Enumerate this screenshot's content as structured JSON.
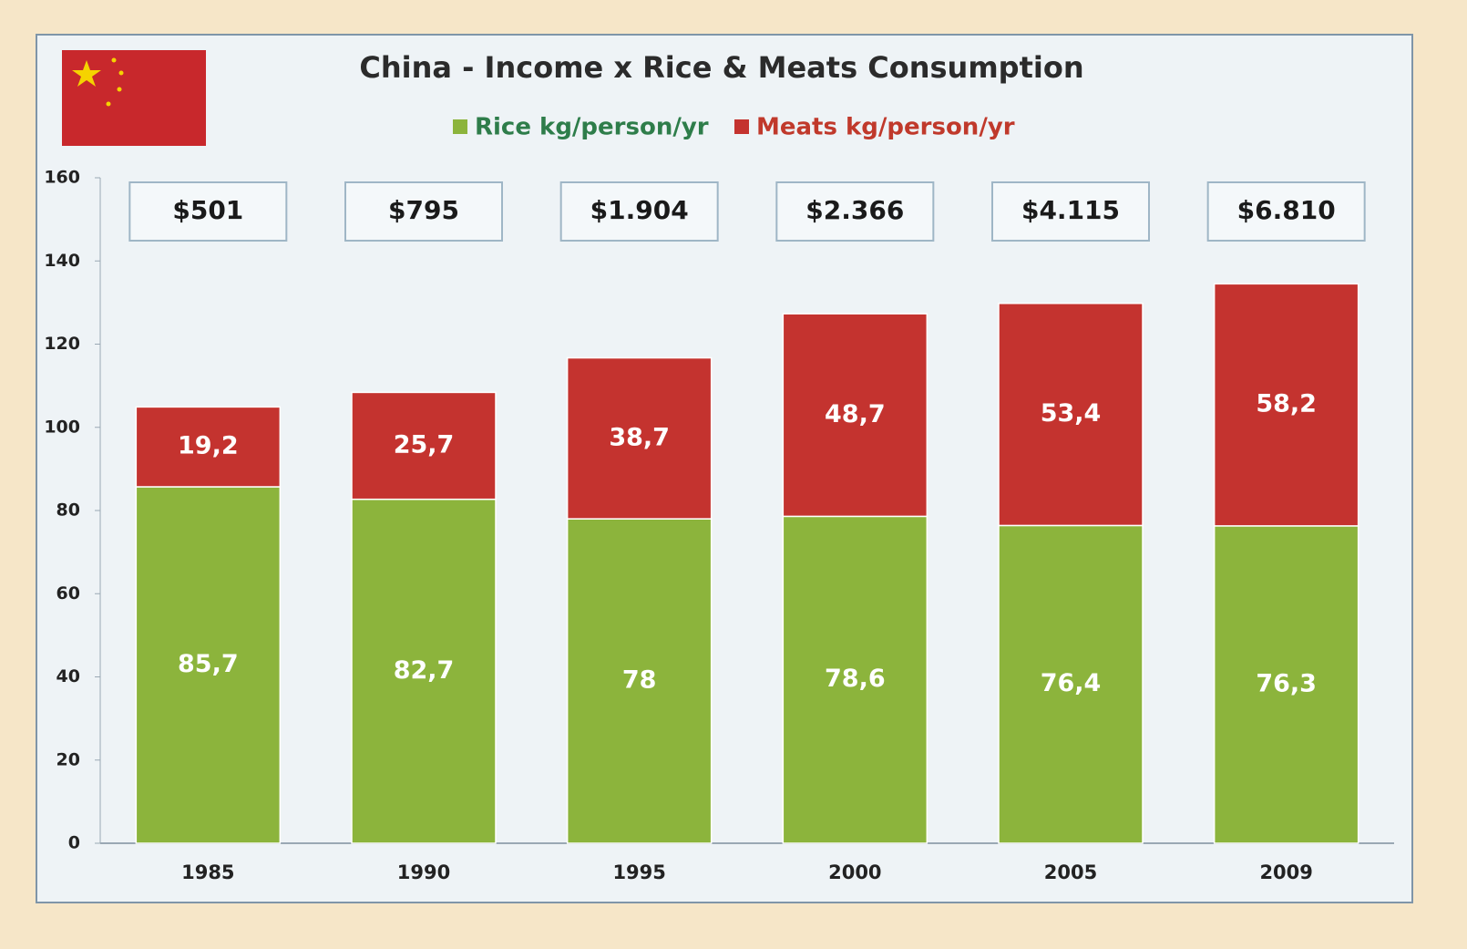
{
  "chart_data": {
    "type": "stacked_bar",
    "title": "China - Income x Rice & Meats Consumption",
    "categories": [
      "1985",
      "1990",
      "1995",
      "2000",
      "2005",
      "2009"
    ],
    "annotations": [
      "$501",
      "$795",
      "$1.904",
      "$2.366",
      "$4.115",
      "$6.810"
    ],
    "series": [
      {
        "name": "Rice kg/person/yr",
        "color": "#8cb43c",
        "values": [
          85.7,
          82.7,
          78,
          78.6,
          76.4,
          76.3
        ],
        "value_labels": [
          "85,7",
          "82,7",
          "78",
          "78,6",
          "76,4",
          "76,3"
        ]
      },
      {
        "name": "Meats kg/person/yr",
        "color": "#c4332f",
        "values": [
          19.2,
          25.7,
          38.7,
          48.7,
          53.4,
          58.2
        ],
        "value_labels": [
          "19,2",
          "25,7",
          "38,7",
          "48,7",
          "53,4",
          "58,2"
        ]
      }
    ],
    "ylim": [
      0,
      160
    ],
    "yticks": [
      0,
      20,
      40,
      60,
      80,
      100,
      120,
      140,
      160
    ],
    "grid": false,
    "legend": "top"
  }
}
